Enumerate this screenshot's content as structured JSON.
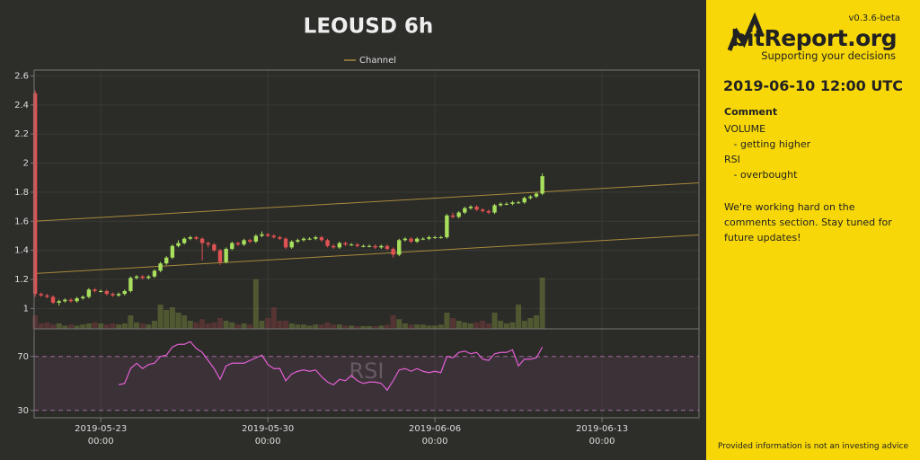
{
  "chart_data": {
    "type": "candlestick",
    "title": "LEOUSD 6h",
    "x": [
      "2019-05-20 06:00",
      "2019-05-20 12:00",
      "2019-05-20 18:00",
      "2019-05-21 00:00",
      "2019-05-21 06:00",
      "2019-05-21 12:00",
      "2019-05-21 18:00",
      "2019-05-22 00:00",
      "2019-05-22 06:00",
      "2019-05-22 12:00",
      "2019-05-22 18:00",
      "2019-05-23 00:00",
      "2019-05-23 06:00",
      "2019-05-23 12:00",
      "2019-05-23 18:00",
      "2019-05-24 00:00",
      "2019-05-24 06:00",
      "2019-05-24 12:00",
      "2019-05-24 18:00",
      "2019-05-25 00:00",
      "2019-05-25 06:00",
      "2019-05-25 12:00",
      "2019-05-25 18:00",
      "2019-05-26 00:00",
      "2019-05-26 06:00",
      "2019-05-26 12:00",
      "2019-05-26 18:00",
      "2019-05-27 00:00",
      "2019-05-27 06:00",
      "2019-05-27 12:00",
      "2019-05-27 18:00",
      "2019-05-28 00:00",
      "2019-05-28 06:00",
      "2019-05-28 12:00",
      "2019-05-28 18:00",
      "2019-05-29 00:00",
      "2019-05-29 06:00",
      "2019-05-29 12:00",
      "2019-05-29 18:00",
      "2019-05-30 00:00",
      "2019-05-30 06:00",
      "2019-05-30 12:00",
      "2019-05-30 18:00",
      "2019-05-31 00:00",
      "2019-05-31 06:00",
      "2019-05-31 12:00",
      "2019-05-31 18:00",
      "2019-06-01 00:00",
      "2019-06-01 06:00",
      "2019-06-01 12:00",
      "2019-06-01 18:00",
      "2019-06-02 00:00",
      "2019-06-02 06:00",
      "2019-06-02 12:00",
      "2019-06-02 18:00",
      "2019-06-03 00:00",
      "2019-06-03 06:00",
      "2019-06-03 12:00",
      "2019-06-03 18:00",
      "2019-06-04 00:00",
      "2019-06-04 06:00",
      "2019-06-04 12:00",
      "2019-06-04 18:00",
      "2019-06-05 00:00",
      "2019-06-05 06:00",
      "2019-06-05 12:00",
      "2019-06-05 18:00",
      "2019-06-06 00:00",
      "2019-06-06 06:00",
      "2019-06-06 12:00",
      "2019-06-06 18:00",
      "2019-06-07 00:00",
      "2019-06-07 06:00",
      "2019-06-07 12:00",
      "2019-06-07 18:00",
      "2019-06-08 00:00",
      "2019-06-08 06:00",
      "2019-06-08 12:00",
      "2019-06-08 18:00",
      "2019-06-09 00:00",
      "2019-06-09 06:00",
      "2019-06-09 12:00",
      "2019-06-09 18:00",
      "2019-06-10 00:00",
      "2019-06-10 06:00",
      "2019-06-10 12:00"
    ],
    "open": [
      2.48,
      1.1,
      1.09,
      1.08,
      1.04,
      1.05,
      1.06,
      1.05,
      1.07,
      1.08,
      1.13,
      1.12,
      1.12,
      1.1,
      1.09,
      1.1,
      1.12,
      1.21,
      1.22,
      1.21,
      1.22,
      1.26,
      1.31,
      1.35,
      1.43,
      1.45,
      1.48,
      1.49,
      1.48,
      1.45,
      1.44,
      1.4,
      1.32,
      1.41,
      1.45,
      1.44,
      1.47,
      1.46,
      1.5,
      1.51,
      1.5,
      1.49,
      1.48,
      1.42,
      1.46,
      1.47,
      1.48,
      1.48,
      1.49,
      1.47,
      1.43,
      1.42,
      1.45,
      1.44,
      1.44,
      1.43,
      1.43,
      1.43,
      1.42,
      1.43,
      1.41,
      1.37,
      1.47,
      1.48,
      1.46,
      1.48,
      1.48,
      1.49,
      1.49,
      1.49,
      1.64,
      1.63,
      1.66,
      1.69,
      1.7,
      1.68,
      1.67,
      1.66,
      1.71,
      1.72,
      1.72,
      1.73,
      1.73,
      1.76,
      1.77,
      1.79
    ],
    "high": [
      2.5,
      1.11,
      1.1,
      1.09,
      1.06,
      1.07,
      1.07,
      1.08,
      1.09,
      1.14,
      1.14,
      1.13,
      1.13,
      1.11,
      1.11,
      1.13,
      1.22,
      1.23,
      1.23,
      1.23,
      1.27,
      1.32,
      1.36,
      1.44,
      1.47,
      1.49,
      1.5,
      1.5,
      1.49,
      1.46,
      1.45,
      1.41,
      1.42,
      1.46,
      1.46,
      1.48,
      1.48,
      1.51,
      1.53,
      1.52,
      1.51,
      1.5,
      1.49,
      1.47,
      1.48,
      1.49,
      1.49,
      1.5,
      1.5,
      1.48,
      1.44,
      1.46,
      1.46,
      1.45,
      1.45,
      1.44,
      1.44,
      1.44,
      1.44,
      1.44,
      1.42,
      1.48,
      1.49,
      1.49,
      1.49,
      1.49,
      1.5,
      1.5,
      1.5,
      1.65,
      1.66,
      1.67,
      1.7,
      1.71,
      1.71,
      1.69,
      1.68,
      1.72,
      1.73,
      1.73,
      1.74,
      1.74,
      1.77,
      1.78,
      1.8,
      1.93
    ],
    "low": [
      1.08,
      1.08,
      1.07,
      1.03,
      1.02,
      1.04,
      1.04,
      1.04,
      1.06,
      1.07,
      1.11,
      1.11,
      1.09,
      1.08,
      1.08,
      1.09,
      1.11,
      1.2,
      1.2,
      1.2,
      1.21,
      1.25,
      1.3,
      1.34,
      1.42,
      1.44,
      1.47,
      1.47,
      1.33,
      1.42,
      1.39,
      1.3,
      1.31,
      1.4,
      1.43,
      1.43,
      1.45,
      1.45,
      1.49,
      1.49,
      1.48,
      1.47,
      1.41,
      1.41,
      1.45,
      1.46,
      1.47,
      1.47,
      1.46,
      1.42,
      1.41,
      1.41,
      1.43,
      1.43,
      1.42,
      1.42,
      1.42,
      1.41,
      1.41,
      1.4,
      1.35,
      1.36,
      1.46,
      1.45,
      1.45,
      1.47,
      1.47,
      1.48,
      1.48,
      1.48,
      1.62,
      1.62,
      1.65,
      1.68,
      1.67,
      1.66,
      1.65,
      1.65,
      1.7,
      1.71,
      1.71,
      1.72,
      1.72,
      1.75,
      1.76,
      1.78
    ],
    "close": [
      1.1,
      1.09,
      1.08,
      1.04,
      1.05,
      1.06,
      1.05,
      1.07,
      1.08,
      1.13,
      1.12,
      1.12,
      1.1,
      1.09,
      1.1,
      1.12,
      1.21,
      1.22,
      1.21,
      1.22,
      1.26,
      1.31,
      1.35,
      1.43,
      1.45,
      1.48,
      1.49,
      1.48,
      1.45,
      1.44,
      1.4,
      1.32,
      1.41,
      1.45,
      1.44,
      1.47,
      1.46,
      1.5,
      1.51,
      1.5,
      1.49,
      1.48,
      1.42,
      1.46,
      1.47,
      1.48,
      1.48,
      1.49,
      1.47,
      1.43,
      1.42,
      1.45,
      1.44,
      1.44,
      1.43,
      1.43,
      1.43,
      1.42,
      1.43,
      1.41,
      1.37,
      1.47,
      1.48,
      1.46,
      1.48,
      1.48,
      1.49,
      1.49,
      1.49,
      1.64,
      1.63,
      1.66,
      1.69,
      1.7,
      1.68,
      1.67,
      1.66,
      1.71,
      1.72,
      1.72,
      1.73,
      1.73,
      1.76,
      1.77,
      1.79,
      1.91
    ],
    "up_color": "#a8df5c",
    "down_color": "#e05252",
    "xlim": [
      "2019-05-20 05:00",
      "2019-06-17 01:30"
    ],
    "xticks": [
      {
        "value": "2019-05-23 00:00",
        "label": "2019-05-23\n00:00"
      },
      {
        "value": "2019-05-30 00:00",
        "label": "2019-05-30\n00:00"
      },
      {
        "value": "2019-06-06 00:00",
        "label": "2019-06-06\n00:00"
      },
      {
        "value": "2019-06-13 00:00",
        "label": "2019-06-13\n00:00"
      }
    ],
    "ylim": [
      0.86,
      2.64
    ],
    "yticks": [
      1,
      1.2,
      1.4,
      1.6,
      1.8,
      2,
      2.2,
      2.4,
      2.6
    ],
    "grid": true,
    "legend": "top",
    "channel": {
      "name": "Channel",
      "color": "#a88a3c",
      "upper": [
        1.6,
        1.864
      ],
      "lower": [
        1.24,
        1.506
      ]
    },
    "volume": {
      "vlim": [
        0,
        100
      ],
      "values": [
        25,
        10,
        12,
        8,
        10,
        6,
        8,
        6,
        8,
        10,
        12,
        10,
        8,
        10,
        8,
        10,
        25,
        12,
        10,
        8,
        15,
        45,
        35,
        40,
        30,
        25,
        15,
        12,
        18,
        10,
        12,
        20,
        15,
        12,
        8,
        10,
        8,
        92,
        15,
        20,
        40,
        15,
        15,
        10,
        8,
        8,
        6,
        8,
        8,
        12,
        8,
        8,
        6,
        6,
        5,
        5,
        5,
        5,
        6,
        8,
        25,
        18,
        10,
        8,
        8,
        8,
        6,
        6,
        8,
        30,
        20,
        15,
        12,
        10,
        12,
        15,
        10,
        30,
        15,
        10,
        12,
        45,
        15,
        20,
        25,
        95
      ]
    },
    "rsi": {
      "name": "RSI",
      "color": "#e35fd3",
      "ylim": [
        24.5,
        90.5
      ],
      "yticks": [
        30,
        70
      ],
      "values": [
        null,
        null,
        null,
        null,
        null,
        null,
        null,
        null,
        null,
        null,
        null,
        null,
        null,
        null,
        49,
        50,
        61,
        65,
        61,
        64,
        65,
        70,
        71,
        77,
        79,
        79,
        81,
        76,
        73,
        67,
        61,
        53,
        63,
        65,
        65,
        65,
        67,
        69,
        71,
        64,
        61,
        61,
        52,
        57,
        59,
        60,
        59,
        60,
        55,
        51,
        49,
        53,
        52,
        56,
        52,
        50,
        51,
        51,
        50,
        45,
        52,
        60,
        61,
        59,
        61,
        59,
        58,
        59,
        58,
        70,
        69,
        73,
        74,
        72,
        73,
        68,
        67,
        72,
        73,
        73,
        75,
        63,
        68,
        68,
        69,
        77
      ]
    }
  },
  "sidebar": {
    "version": "v0.3.6-beta",
    "brand": "bitReport.org",
    "tagline": "Supporting your decisions",
    "timestamp": "2019-06-10 12:00 UTC",
    "comment_heading": "Comment",
    "comments": [
      "VOLUME",
      "   - getting higher",
      "RSI",
      "   - overbought"
    ],
    "notice": "We're working hard on the comments section. Stay tuned for future updates!",
    "disclaimer": "Provided information is not an investing advice"
  }
}
